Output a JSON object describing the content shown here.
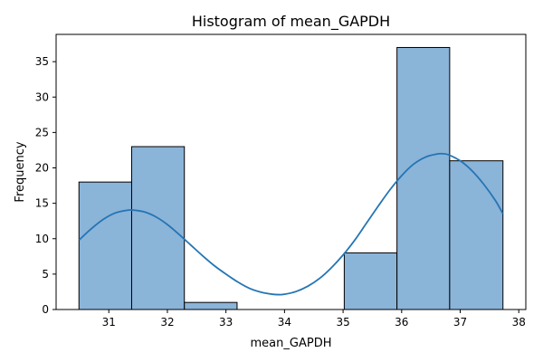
{
  "chart_data": {
    "type": "bar",
    "subtype": "histogram_with_kde",
    "title": "Histogram of mean_GAPDH",
    "xlabel": "mean_GAPDH",
    "ylabel": "Frequency",
    "xlim": [
      30.1,
      38.12
    ],
    "ylim": [
      0,
      38.85
    ],
    "xticks": [
      31,
      32,
      33,
      34,
      35,
      36,
      37,
      38
    ],
    "yticks": [
      0,
      5,
      10,
      15,
      20,
      25,
      30,
      35
    ],
    "bins": [
      {
        "x0": 30.49,
        "x1": 31.39,
        "count": 18
      },
      {
        "x0": 31.39,
        "x1": 32.29,
        "count": 23
      },
      {
        "x0": 32.29,
        "x1": 33.19,
        "count": 1
      },
      {
        "x0": 33.19,
        "x1": 34.11,
        "count": 0
      },
      {
        "x0": 34.11,
        "x1": 35.02,
        "count": 0
      },
      {
        "x0": 35.02,
        "x1": 35.92,
        "count": 8
      },
      {
        "x0": 35.92,
        "x1": 36.82,
        "count": 37
      },
      {
        "x0": 36.82,
        "x1": 37.73,
        "count": 21
      }
    ],
    "kde": {
      "x": [
        30.49,
        30.7,
        30.9,
        31.1,
        31.3,
        31.4,
        31.6,
        31.8,
        32.0,
        32.2,
        32.4,
        32.6,
        32.8,
        33.0,
        33.2,
        33.4,
        33.6,
        33.8,
        33.9,
        34.0,
        34.2,
        34.4,
        34.6,
        34.8,
        35.0,
        35.2,
        35.4,
        35.6,
        35.8,
        36.0,
        36.2,
        36.4,
        36.6,
        36.7,
        36.8,
        37.0,
        37.2,
        37.4,
        37.6,
        37.73
      ],
      "y": [
        9.8,
        11.4,
        12.7,
        13.6,
        14.0,
        14.05,
        13.8,
        13.1,
        12.0,
        10.6,
        9.1,
        7.6,
        6.2,
        5.0,
        3.9,
        3.0,
        2.45,
        2.15,
        2.1,
        2.15,
        2.55,
        3.3,
        4.4,
        5.9,
        7.7,
        9.8,
        12.2,
        14.6,
        16.9,
        18.9,
        20.5,
        21.5,
        21.95,
        22.0,
        21.85,
        21.0,
        19.6,
        17.7,
        15.4,
        13.5
      ]
    },
    "colors": {
      "bar_fill": "#8bb4d9",
      "bar_edge": "#000000",
      "kde_line": "#2475b4"
    },
    "grid": false,
    "legend": "none"
  }
}
